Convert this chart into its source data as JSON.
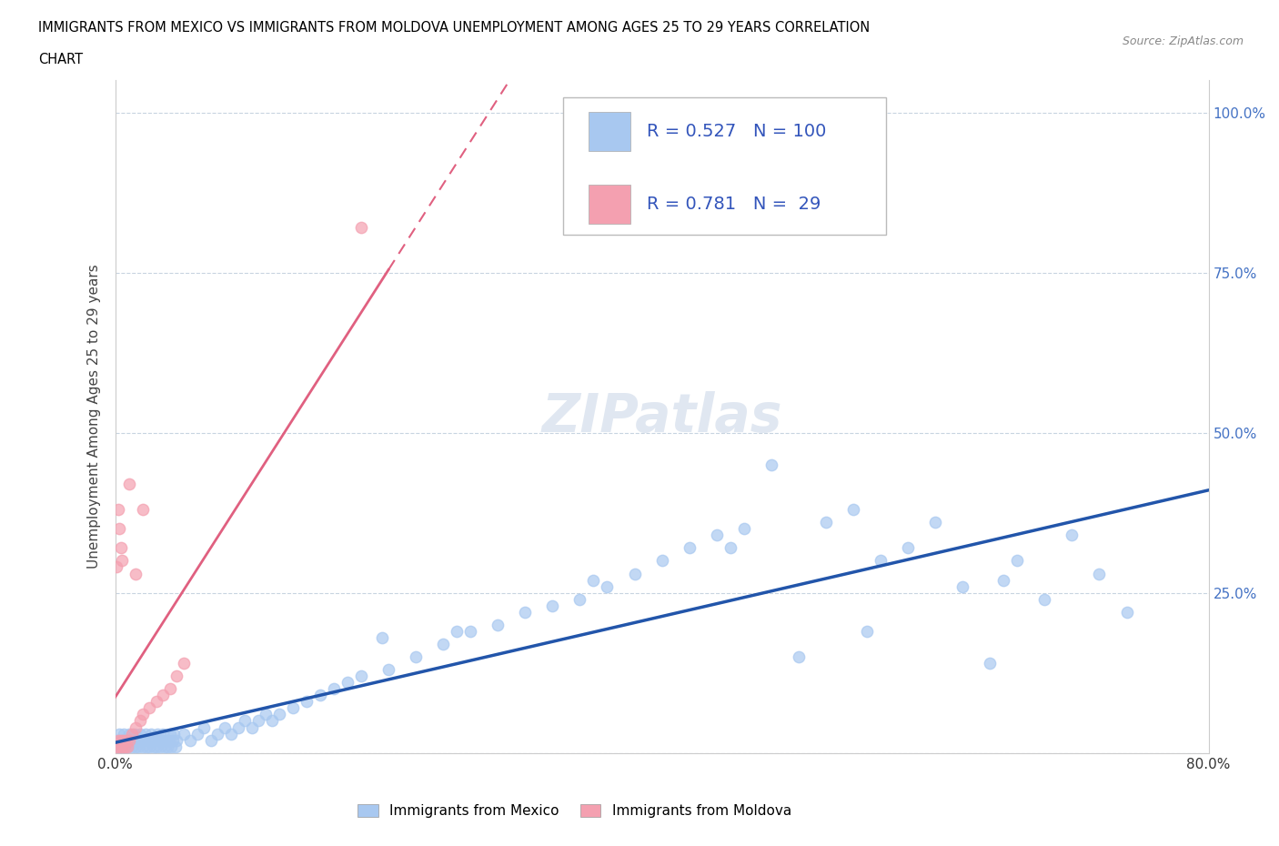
{
  "title_line1": "IMMIGRANTS FROM MEXICO VS IMMIGRANTS FROM MOLDOVA UNEMPLOYMENT AMONG AGES 25 TO 29 YEARS CORRELATION",
  "title_line2": "CHART",
  "source_text": "Source: ZipAtlas.com",
  "ylabel": "Unemployment Among Ages 25 to 29 years",
  "xlim": [
    0.0,
    0.8
  ],
  "ylim": [
    0.0,
    1.05
  ],
  "mexico_color": "#a8c8f0",
  "moldova_color": "#f4a0b0",
  "mexico_line_color": "#2255aa",
  "moldova_line_color": "#e06080",
  "mexico_R": 0.527,
  "mexico_N": 100,
  "moldova_R": 0.781,
  "moldova_N": 29,
  "watermark": "ZIPatlas",
  "legend_label_mexico": "Immigrants from Mexico",
  "legend_label_moldova": "Immigrants from Moldova",
  "mexico_scatter_x": [
    0.001,
    0.002,
    0.003,
    0.004,
    0.005,
    0.006,
    0.007,
    0.008,
    0.009,
    0.01,
    0.011,
    0.012,
    0.013,
    0.014,
    0.015,
    0.016,
    0.017,
    0.018,
    0.019,
    0.02,
    0.021,
    0.022,
    0.023,
    0.024,
    0.025,
    0.026,
    0.027,
    0.028,
    0.029,
    0.03,
    0.031,
    0.032,
    0.033,
    0.034,
    0.035,
    0.036,
    0.037,
    0.038,
    0.039,
    0.04,
    0.041,
    0.042,
    0.043,
    0.044,
    0.045,
    0.05,
    0.055,
    0.06,
    0.065,
    0.07,
    0.075,
    0.08,
    0.085,
    0.09,
    0.095,
    0.1,
    0.105,
    0.11,
    0.115,
    0.12,
    0.13,
    0.14,
    0.15,
    0.16,
    0.17,
    0.18,
    0.2,
    0.22,
    0.24,
    0.26,
    0.28,
    0.3,
    0.32,
    0.34,
    0.36,
    0.38,
    0.4,
    0.42,
    0.44,
    0.46,
    0.48,
    0.5,
    0.52,
    0.54,
    0.56,
    0.58,
    0.6,
    0.62,
    0.64,
    0.66,
    0.68,
    0.7,
    0.72,
    0.74,
    0.195,
    0.25,
    0.35,
    0.45,
    0.55,
    0.65
  ],
  "mexico_scatter_y": [
    0.02,
    0.01,
    0.03,
    0.01,
    0.02,
    0.03,
    0.01,
    0.02,
    0.01,
    0.03,
    0.02,
    0.01,
    0.02,
    0.03,
    0.01,
    0.02,
    0.01,
    0.03,
    0.02,
    0.01,
    0.02,
    0.03,
    0.01,
    0.02,
    0.01,
    0.03,
    0.02,
    0.01,
    0.02,
    0.01,
    0.03,
    0.02,
    0.01,
    0.02,
    0.03,
    0.01,
    0.02,
    0.01,
    0.02,
    0.03,
    0.01,
    0.02,
    0.03,
    0.01,
    0.02,
    0.03,
    0.02,
    0.03,
    0.04,
    0.02,
    0.03,
    0.04,
    0.03,
    0.04,
    0.05,
    0.04,
    0.05,
    0.06,
    0.05,
    0.06,
    0.07,
    0.08,
    0.09,
    0.1,
    0.11,
    0.12,
    0.13,
    0.15,
    0.17,
    0.19,
    0.2,
    0.22,
    0.23,
    0.24,
    0.26,
    0.28,
    0.3,
    0.32,
    0.34,
    0.35,
    0.45,
    0.15,
    0.36,
    0.38,
    0.3,
    0.32,
    0.36,
    0.26,
    0.14,
    0.3,
    0.24,
    0.34,
    0.28,
    0.22,
    0.18,
    0.19,
    0.27,
    0.32,
    0.19,
    0.27
  ],
  "moldova_scatter_x": [
    0.001,
    0.002,
    0.003,
    0.004,
    0.005,
    0.006,
    0.007,
    0.008,
    0.009,
    0.01,
    0.012,
    0.015,
    0.018,
    0.02,
    0.025,
    0.03,
    0.035,
    0.04,
    0.045,
    0.05,
    0.003,
    0.004,
    0.005,
    0.01,
    0.015,
    0.02,
    0.18,
    0.001,
    0.002
  ],
  "moldova_scatter_y": [
    0.01,
    0.02,
    0.01,
    0.02,
    0.01,
    0.02,
    0.01,
    0.02,
    0.01,
    0.02,
    0.03,
    0.04,
    0.05,
    0.06,
    0.07,
    0.08,
    0.09,
    0.1,
    0.12,
    0.14,
    0.35,
    0.32,
    0.3,
    0.42,
    0.28,
    0.38,
    0.82,
    0.29,
    0.38
  ]
}
